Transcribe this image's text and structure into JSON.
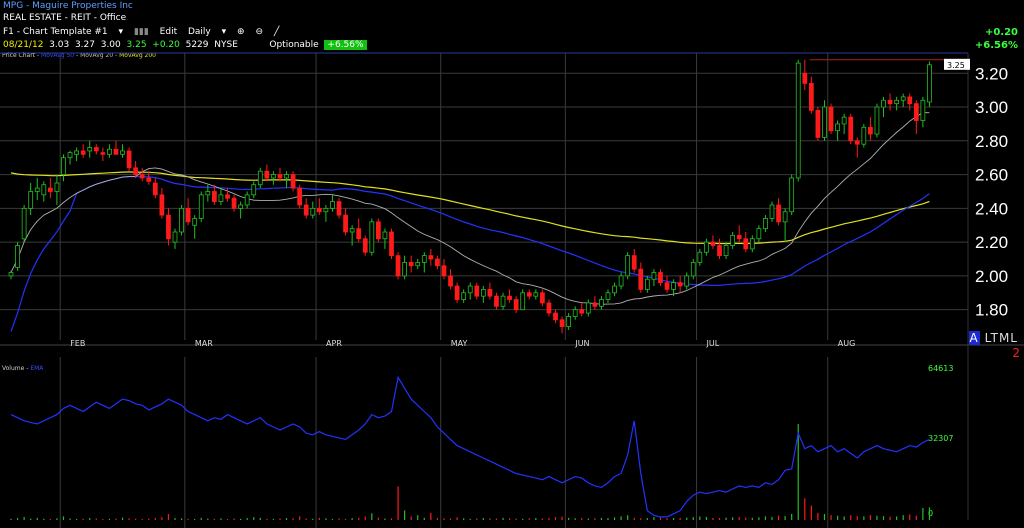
{
  "header": {
    "title_line": "MPG - Maguire Properties Inc",
    "sector_line": "REAL ESTATE - REIT - Office",
    "toolbar": {
      "template": "F1 - Chart Template #1",
      "edit": "Edit",
      "period": "Daily"
    },
    "quote": {
      "date": "08/21/12",
      "open": "3.03",
      "high": "3.27",
      "low": "3.00",
      "close": "3.25",
      "change": "+0.20",
      "volume": "5229",
      "exchange": "NYSE",
      "optionable": "Optionable",
      "pct_pill": "+6.56%"
    },
    "change_right": "+0.20",
    "pct_right": "+6.56%"
  },
  "legend": {
    "price": "Price Chart",
    "ma1": "MovAvg 50",
    "ma2": "MovAvg 20",
    "ma3": "MovAvg 200",
    "volume": "Volume",
    "vma": "EMA"
  },
  "brand": {
    "a": "A",
    "rest": "LTML",
    "sub": "2"
  },
  "colors": {
    "up": "#22c022",
    "down": "#ff1a1a",
    "ma20": "#b0b0b0",
    "ma50": "#2233ff",
    "ma200": "#e0e020",
    "grid": "#3a3a3a"
  },
  "chart_data": {
    "type": "candlestick",
    "title": "MPG - Maguire Properties Inc",
    "ylim": [
      1.65,
      3.32
    ],
    "yticks": [
      "3.20",
      "3.00",
      "2.80",
      "2.60",
      "2.40",
      "2.20",
      "2.00",
      "1.80"
    ],
    "months": [
      {
        "label": "FEB",
        "index": 8
      },
      {
        "label": "MAR",
        "index": 27
      },
      {
        "label": "APR",
        "index": 47
      },
      {
        "label": "MAY",
        "index": 66
      },
      {
        "label": "JUN",
        "index": 85
      },
      {
        "label": "JUL",
        "index": 105
      },
      {
        "label": "AUG",
        "index": 125
      }
    ],
    "last_price_label": "3.25",
    "candles": [
      [
        2.0,
        2.03,
        1.98,
        2.02
      ],
      [
        2.05,
        2.2,
        2.03,
        2.18
      ],
      [
        2.22,
        2.42,
        2.2,
        2.4
      ],
      [
        2.4,
        2.55,
        2.36,
        2.5
      ],
      [
        2.5,
        2.58,
        2.45,
        2.52
      ],
      [
        2.48,
        2.56,
        2.44,
        2.54
      ],
      [
        2.52,
        2.58,
        2.46,
        2.5
      ],
      [
        2.5,
        2.6,
        2.42,
        2.55
      ],
      [
        2.6,
        2.72,
        2.56,
        2.7
      ],
      [
        2.7,
        2.74,
        2.66,
        2.73
      ],
      [
        2.72,
        2.76,
        2.68,
        2.74
      ],
      [
        2.74,
        2.78,
        2.7,
        2.72
      ],
      [
        2.74,
        2.8,
        2.7,
        2.76
      ],
      [
        2.76,
        2.78,
        2.72,
        2.74
      ],
      [
        2.73,
        2.76,
        2.68,
        2.72
      ],
      [
        2.72,
        2.78,
        2.7,
        2.75
      ],
      [
        2.75,
        2.8,
        2.72,
        2.72
      ],
      [
        2.72,
        2.78,
        2.7,
        2.74
      ],
      [
        2.74,
        2.76,
        2.62,
        2.64
      ],
      [
        2.64,
        2.68,
        2.58,
        2.6
      ],
      [
        2.6,
        2.64,
        2.56,
        2.58
      ],
      [
        2.58,
        2.62,
        2.54,
        2.56
      ],
      [
        2.55,
        2.58,
        2.46,
        2.48
      ],
      [
        2.48,
        2.52,
        2.34,
        2.36
      ],
      [
        2.36,
        2.4,
        2.18,
        2.22
      ],
      [
        2.2,
        2.28,
        2.16,
        2.26
      ],
      [
        2.26,
        2.42,
        2.24,
        2.4
      ],
      [
        2.4,
        2.46,
        2.3,
        2.32
      ],
      [
        2.3,
        2.36,
        2.22,
        2.34
      ],
      [
        2.34,
        2.5,
        2.32,
        2.48
      ],
      [
        2.48,
        2.54,
        2.44,
        2.5
      ],
      [
        2.5,
        2.54,
        2.42,
        2.44
      ],
      [
        2.44,
        2.52,
        2.42,
        2.48
      ],
      [
        2.48,
        2.52,
        2.44,
        2.46
      ],
      [
        2.46,
        2.48,
        2.38,
        2.4
      ],
      [
        2.4,
        2.44,
        2.34,
        2.42
      ],
      [
        2.42,
        2.5,
        2.4,
        2.48
      ],
      [
        2.48,
        2.56,
        2.46,
        2.54
      ],
      [
        2.54,
        2.64,
        2.52,
        2.62
      ],
      [
        2.62,
        2.66,
        2.56,
        2.58
      ],
      [
        2.58,
        2.62,
        2.54,
        2.6
      ],
      [
        2.6,
        2.64,
        2.56,
        2.58
      ],
      [
        2.58,
        2.62,
        2.52,
        2.6
      ],
      [
        2.6,
        2.62,
        2.5,
        2.52
      ],
      [
        2.52,
        2.54,
        2.4,
        2.42
      ],
      [
        2.42,
        2.46,
        2.34,
        2.36
      ],
      [
        2.36,
        2.44,
        2.34,
        2.4
      ],
      [
        2.4,
        2.46,
        2.36,
        2.38
      ],
      [
        2.38,
        2.42,
        2.32,
        2.4
      ],
      [
        2.4,
        2.48,
        2.38,
        2.44
      ],
      [
        2.44,
        2.46,
        2.34,
        2.36
      ],
      [
        2.36,
        2.4,
        2.24,
        2.26
      ],
      [
        2.26,
        2.3,
        2.18,
        2.28
      ],
      [
        2.28,
        2.34,
        2.2,
        2.22
      ],
      [
        2.22,
        2.24,
        2.12,
        2.14
      ],
      [
        2.14,
        2.34,
        2.12,
        2.32
      ],
      [
        2.32,
        2.34,
        2.2,
        2.22
      ],
      [
        2.22,
        2.28,
        2.16,
        2.26
      ],
      [
        2.26,
        2.28,
        2.1,
        2.12
      ],
      [
        2.12,
        2.14,
        1.98,
        2.0
      ],
      [
        2.0,
        2.12,
        1.98,
        2.08
      ],
      [
        2.08,
        2.12,
        2.02,
        2.06
      ],
      [
        2.06,
        2.1,
        2.04,
        2.08
      ],
      [
        2.08,
        2.14,
        2.02,
        2.12
      ],
      [
        2.12,
        2.16,
        2.06,
        2.1
      ],
      [
        2.1,
        2.12,
        2.04,
        2.06
      ],
      [
        2.06,
        2.1,
        1.98,
        2.0
      ],
      [
        2.0,
        2.04,
        1.92,
        1.94
      ],
      [
        1.94,
        1.96,
        1.84,
        1.86
      ],
      [
        1.86,
        1.92,
        1.84,
        1.9
      ],
      [
        1.9,
        1.96,
        1.86,
        1.94
      ],
      [
        1.94,
        1.96,
        1.86,
        1.88
      ],
      [
        1.88,
        1.94,
        1.84,
        1.92
      ],
      [
        1.92,
        1.96,
        1.86,
        1.88
      ],
      [
        1.88,
        1.9,
        1.8,
        1.82
      ],
      [
        1.82,
        1.9,
        1.8,
        1.88
      ],
      [
        1.88,
        1.92,
        1.84,
        1.86
      ],
      [
        1.86,
        1.88,
        1.78,
        1.8
      ],
      [
        1.8,
        1.92,
        1.8,
        1.9
      ],
      [
        1.9,
        1.92,
        1.86,
        1.88
      ],
      [
        1.88,
        1.92,
        1.86,
        1.9
      ],
      [
        1.9,
        1.92,
        1.82,
        1.84
      ],
      [
        1.84,
        1.86,
        1.76,
        1.78
      ],
      [
        1.78,
        1.8,
        1.72,
        1.74
      ],
      [
        1.74,
        1.76,
        1.66,
        1.7
      ],
      [
        1.7,
        1.78,
        1.68,
        1.76
      ],
      [
        1.76,
        1.82,
        1.74,
        1.8
      ],
      [
        1.8,
        1.84,
        1.76,
        1.78
      ],
      [
        1.78,
        1.86,
        1.76,
        1.84
      ],
      [
        1.84,
        1.88,
        1.8,
        1.82
      ],
      [
        1.82,
        1.88,
        1.8,
        1.86
      ],
      [
        1.86,
        1.92,
        1.84,
        1.9
      ],
      [
        1.9,
        1.96,
        1.88,
        1.94
      ],
      [
        1.94,
        2.02,
        1.92,
        2.0
      ],
      [
        2.0,
        2.14,
        1.98,
        2.12
      ],
      [
        2.12,
        2.16,
        2.02,
        2.04
      ],
      [
        2.04,
        2.08,
        1.9,
        1.92
      ],
      [
        1.92,
        2.0,
        1.9,
        1.98
      ],
      [
        1.98,
        2.04,
        1.94,
        2.02
      ],
      [
        2.02,
        2.04,
        1.94,
        1.96
      ],
      [
        1.96,
        2.0,
        1.9,
        1.92
      ],
      [
        1.92,
        1.98,
        1.88,
        1.96
      ],
      [
        1.96,
        2.0,
        1.9,
        1.94
      ],
      [
        1.94,
        2.02,
        1.92,
        2.0
      ],
      [
        2.0,
        2.1,
        1.98,
        2.08
      ],
      [
        2.08,
        2.16,
        2.06,
        2.14
      ],
      [
        2.14,
        2.22,
        2.12,
        2.2
      ],
      [
        2.2,
        2.24,
        2.16,
        2.18
      ],
      [
        2.18,
        2.22,
        2.1,
        2.12
      ],
      [
        2.12,
        2.2,
        2.1,
        2.18
      ],
      [
        2.18,
        2.26,
        2.16,
        2.24
      ],
      [
        2.24,
        2.3,
        2.2,
        2.22
      ],
      [
        2.22,
        2.26,
        2.14,
        2.16
      ],
      [
        2.16,
        2.24,
        2.14,
        2.22
      ],
      [
        2.22,
        2.3,
        2.2,
        2.28
      ],
      [
        2.28,
        2.36,
        2.26,
        2.34
      ],
      [
        2.34,
        2.44,
        2.32,
        2.42
      ],
      [
        2.42,
        2.46,
        2.3,
        2.32
      ],
      [
        2.32,
        2.4,
        2.2,
        2.38
      ],
      [
        2.38,
        2.6,
        2.36,
        2.58
      ],
      [
        2.58,
        3.28,
        2.56,
        3.26
      ],
      [
        3.2,
        3.28,
        3.1,
        3.14
      ],
      [
        3.14,
        3.18,
        2.96,
        2.98
      ],
      [
        2.98,
        3.0,
        2.8,
        2.82
      ],
      [
        2.82,
        3.04,
        2.8,
        3.0
      ],
      [
        3.0,
        3.02,
        2.84,
        2.86
      ],
      [
        2.86,
        2.92,
        2.8,
        2.9
      ],
      [
        2.9,
        2.96,
        2.84,
        2.94
      ],
      [
        2.94,
        2.96,
        2.78,
        2.8
      ],
      [
        2.8,
        2.82,
        2.7,
        2.78
      ],
      [
        2.78,
        2.9,
        2.76,
        2.88
      ],
      [
        2.88,
        2.94,
        2.8,
        2.84
      ],
      [
        2.84,
        3.02,
        2.82,
        3.0
      ],
      [
        3.0,
        3.06,
        2.94,
        3.04
      ],
      [
        3.04,
        3.08,
        2.98,
        3.02
      ],
      [
        3.02,
        3.06,
        2.98,
        3.04
      ],
      [
        3.04,
        3.08,
        3.0,
        3.06
      ],
      [
        3.06,
        3.08,
        2.98,
        3.02
      ],
      [
        3.02,
        3.04,
        2.84,
        2.92
      ],
      [
        2.92,
        3.06,
        2.88,
        3.04
      ],
      [
        3.03,
        3.27,
        3.0,
        3.25
      ]
    ],
    "vol_scale_labels": [
      "64613",
      "32307",
      "0"
    ],
    "volume_max": 64613,
    "volume": [
      500,
      800,
      1200,
      600,
      900,
      500,
      400,
      700,
      1500,
      600,
      400,
      500,
      800,
      600,
      400,
      500,
      600,
      1000,
      700,
      500,
      400,
      600,
      900,
      1200,
      2500,
      800,
      700,
      500,
      400,
      900,
      600,
      500,
      700,
      400,
      600,
      500,
      800,
      1200,
      900,
      500,
      400,
      600,
      800,
      700,
      1500,
      600,
      500,
      900,
      700,
      400,
      600,
      500,
      800,
      900,
      1400,
      2800,
      1000,
      600,
      700,
      14000,
      4000,
      1500,
      2000,
      900,
      3000,
      800,
      700,
      600,
      1100,
      700,
      500,
      600,
      800,
      700,
      600,
      900,
      700,
      600,
      500,
      700,
      800,
      600,
      900,
      1200,
      1400,
      900,
      700,
      800,
      600,
      700,
      900,
      800,
      1100,
      1500,
      2000,
      900,
      700,
      800,
      1200,
      1000,
      700,
      800,
      900,
      1000,
      1200,
      1500,
      1300,
      900,
      800,
      1000,
      1100,
      1200,
      1000,
      900,
      1100,
      1500,
      1300,
      1800,
      1600,
      2500,
      40000,
      9000,
      6000,
      3000,
      2500,
      2000,
      1800,
      1500,
      2000,
      1600,
      1500,
      2000,
      1800,
      1600,
      1400,
      1500,
      2000,
      2300,
      1800,
      5000,
      5229
    ],
    "vol_ema": [
      0.68,
      0.66,
      0.64,
      0.63,
      0.62,
      0.64,
      0.66,
      0.68,
      0.72,
      0.74,
      0.72,
      0.7,
      0.73,
      0.76,
      0.74,
      0.72,
      0.75,
      0.78,
      0.77,
      0.75,
      0.74,
      0.71,
      0.73,
      0.75,
      0.78,
      0.76,
      0.74,
      0.7,
      0.68,
      0.66,
      0.64,
      0.66,
      0.65,
      0.68,
      0.66,
      0.64,
      0.62,
      0.64,
      0.66,
      0.62,
      0.6,
      0.58,
      0.6,
      0.62,
      0.6,
      0.56,
      0.55,
      0.57,
      0.55,
      0.54,
      0.53,
      0.52,
      0.55,
      0.58,
      0.62,
      0.68,
      0.66,
      0.67,
      0.7,
      0.92,
      0.85,
      0.78,
      0.74,
      0.7,
      0.66,
      0.6,
      0.56,
      0.52,
      0.48,
      0.46,
      0.44,
      0.42,
      0.4,
      0.38,
      0.36,
      0.34,
      0.32,
      0.3,
      0.29,
      0.28,
      0.27,
      0.26,
      0.28,
      0.26,
      0.24,
      0.26,
      0.28,
      0.27,
      0.24,
      0.22,
      0.21,
      0.24,
      0.28,
      0.3,
      0.42,
      0.64,
      0.3,
      0.06,
      0.03,
      0.02,
      0.02,
      0.04,
      0.06,
      0.12,
      0.16,
      0.18,
      0.17,
      0.18,
      0.19,
      0.18,
      0.2,
      0.22,
      0.21,
      0.22,
      0.21,
      0.24,
      0.23,
      0.26,
      0.32,
      0.33,
      0.56,
      0.46,
      0.48,
      0.44,
      0.46,
      0.48,
      0.44,
      0.46,
      0.43,
      0.4,
      0.44,
      0.46,
      0.48,
      0.46,
      0.45,
      0.44,
      0.46,
      0.48,
      0.47,
      0.5,
      0.52
    ]
  }
}
